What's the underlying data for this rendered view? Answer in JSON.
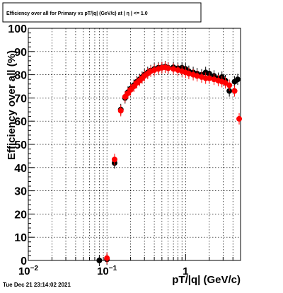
{
  "chart_data": {
    "type": "scatter",
    "title": "Efficiency over all for Primary vs pT/|q| (GeV/c) at | η | <= 1.0",
    "xlabel": "pT/|q| (GeV/c)",
    "ylabel": "Efficiency over all (%)",
    "x_scale": "log",
    "xlim": [
      0.01,
      5
    ],
    "ylim": [
      0,
      100
    ],
    "grid": true,
    "x_tick_labels": [
      {
        "value": 0.01,
        "base": "10",
        "exp": "−2"
      },
      {
        "value": 0.1,
        "base": "10",
        "exp": "−1"
      },
      {
        "value": 1,
        "base": "1",
        "exp": ""
      }
    ],
    "y_ticks": [
      0,
      10,
      20,
      30,
      40,
      50,
      60,
      70,
      80,
      90,
      100
    ],
    "timestamp": "Tue Dec 21 23:14:02 2021",
    "series": [
      {
        "color": "#000000",
        "marker": "circle",
        "points": [
          [
            0.08,
            0.0
          ],
          [
            0.1,
            0.5
          ],
          [
            0.125,
            42.0
          ],
          [
            0.15,
            65.0
          ],
          [
            0.17,
            70.0
          ],
          [
            0.185,
            72.5
          ],
          [
            0.2,
            74.0
          ],
          [
            0.22,
            75.5
          ],
          [
            0.24,
            77.0
          ],
          [
            0.26,
            78.0
          ],
          [
            0.28,
            79.0
          ],
          [
            0.3,
            80.0
          ],
          [
            0.33,
            81.0
          ],
          [
            0.36,
            81.8
          ],
          [
            0.4,
            82.5
          ],
          [
            0.45,
            83.0
          ],
          [
            0.5,
            83.2
          ],
          [
            0.55,
            83.5
          ],
          [
            0.6,
            83.0
          ],
          [
            0.7,
            83.2
          ],
          [
            0.8,
            82.8
          ],
          [
            0.9,
            83.0
          ],
          [
            1.0,
            82.5
          ],
          [
            1.1,
            81.5
          ],
          [
            1.25,
            81.0
          ],
          [
            1.4,
            80.5
          ],
          [
            1.6,
            80.0
          ],
          [
            1.8,
            81.0
          ],
          [
            2.0,
            80.5
          ],
          [
            2.3,
            79.5
          ],
          [
            2.6,
            78.5
          ],
          [
            2.9,
            79.0
          ],
          [
            3.2,
            77.5
          ],
          [
            3.6,
            73.0
          ],
          [
            4.2,
            77.0
          ],
          [
            4.6,
            78.0
          ]
        ]
      },
      {
        "color": "#ff0000",
        "marker": "circle",
        "points": [
          [
            0.1,
            1.0
          ],
          [
            0.125,
            43.5
          ],
          [
            0.15,
            64.5
          ],
          [
            0.17,
            70.5
          ],
          [
            0.185,
            72.0
          ],
          [
            0.2,
            73.5
          ],
          [
            0.22,
            75.0
          ],
          [
            0.24,
            76.5
          ],
          [
            0.26,
            77.5
          ],
          [
            0.28,
            78.5
          ],
          [
            0.3,
            79.5
          ],
          [
            0.33,
            80.5
          ],
          [
            0.36,
            81.5
          ],
          [
            0.4,
            82.0
          ],
          [
            0.45,
            82.5
          ],
          [
            0.5,
            83.0
          ],
          [
            0.55,
            83.2
          ],
          [
            0.6,
            82.8
          ],
          [
            0.7,
            82.5
          ],
          [
            0.8,
            82.0
          ],
          [
            0.9,
            81.5
          ],
          [
            1.0,
            81.0
          ],
          [
            1.1,
            80.5
          ],
          [
            1.25,
            80.0
          ],
          [
            1.4,
            79.5
          ],
          [
            1.6,
            79.0
          ],
          [
            1.8,
            78.5
          ],
          [
            2.0,
            78.5
          ],
          [
            2.3,
            78.0
          ],
          [
            2.6,
            77.5
          ],
          [
            2.9,
            77.0
          ],
          [
            3.2,
            76.5
          ],
          [
            3.6,
            75.5
          ],
          [
            4.2,
            73.0
          ],
          [
            4.8,
            61.0
          ]
        ]
      }
    ]
  }
}
